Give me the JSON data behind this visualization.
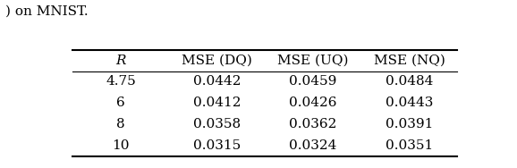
{
  "caption_text": ") on MNIST.",
  "col_headers": [
    "R",
    "MSE (DQ)",
    "MSE (UQ)",
    "MSE (NQ)"
  ],
  "rows": [
    [
      "4.75",
      "0.0442",
      "0.0459",
      "0.0484"
    ],
    [
      "6",
      "0.0412",
      "0.0426",
      "0.0443"
    ],
    [
      "8",
      "0.0358",
      "0.0362",
      "0.0391"
    ],
    [
      "10",
      "0.0315",
      "0.0324",
      "0.0351"
    ]
  ],
  "font_size": 11,
  "caption_font_size": 11,
  "background": "#ffffff",
  "text_color": "#000000",
  "figsize": [
    5.78,
    1.88
  ],
  "dpi": 100
}
